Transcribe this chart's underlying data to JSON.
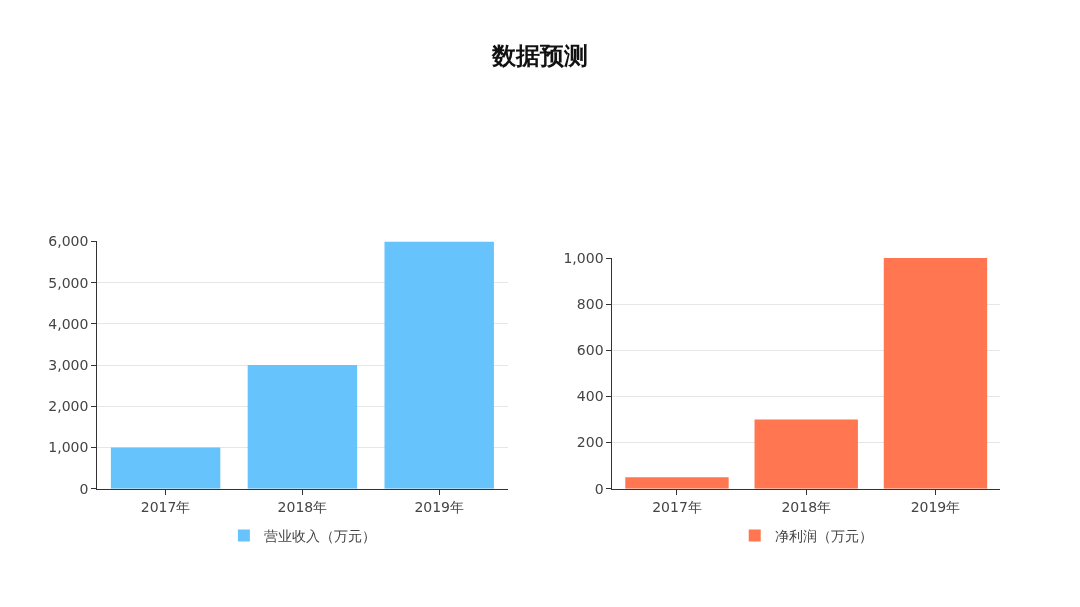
{
  "chart_data": [
    {
      "type": "bar",
      "title": "数据预测",
      "categories": [
        "2017年",
        "2018年",
        "2019年"
      ],
      "series": [
        {
          "name": "营业收入（万元）",
          "color": "#66c3fb",
          "values": [
            1000,
            3000,
            6000
          ]
        }
      ],
      "ylim": [
        0,
        6000
      ],
      "yticks": [
        0,
        {
          "value": 1000,
          "label": "1,000"
        },
        {
          "value": 2000,
          "label": "2,000"
        },
        {
          "value": 3000,
          "label": "3,000"
        },
        {
          "value": 4000,
          "label": "4,000"
        },
        {
          "value": 5000,
          "label": "5,000"
        },
        {
          "value": 6000,
          "label": "6,000"
        }
      ],
      "grid": "y",
      "legend": "bottom"
    },
    {
      "type": "bar",
      "categories": [
        "2017年",
        "2018年",
        "2019年"
      ],
      "series": [
        {
          "name": "净利润（万元）",
          "color": "#ff7651",
          "values": [
            50,
            300,
            1000
          ]
        }
      ],
      "ylim": [
        0,
        1000
      ],
      "yticks": [
        0,
        200,
        400,
        600,
        800,
        {
          "value": 1000,
          "label": "1,000"
        }
      ],
      "grid": "y",
      "legend": "bottom"
    }
  ]
}
